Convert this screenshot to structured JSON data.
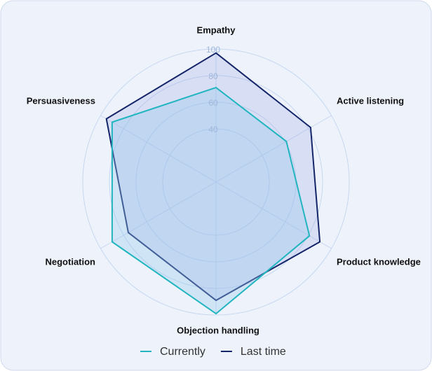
{
  "chart_data": {
    "type": "radar",
    "categories": [
      "Empathy",
      "Active listening",
      "Product knowledge",
      "Objection handling",
      "Negotiation",
      "Persuasiveness"
    ],
    "series": [
      {
        "name": "Currently",
        "color": "#22b5c0",
        "values": [
          71,
          61,
          81,
          99,
          90,
          90
        ]
      },
      {
        "name": "Last time",
        "color": "#14256a",
        "values": [
          97,
          82,
          90,
          89,
          76,
          95
        ]
      }
    ],
    "rlim": [
      0,
      100
    ],
    "rticks": [
      40,
      60,
      80,
      100
    ],
    "grid": true,
    "legend": "bottom"
  }
}
